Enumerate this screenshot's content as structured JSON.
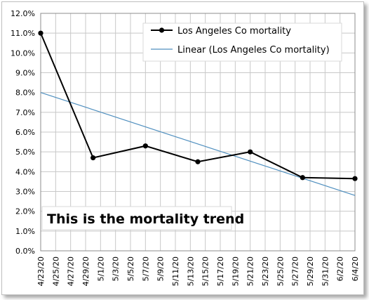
{
  "chart_data": {
    "type": "line",
    "x": [
      "4/23/20",
      "4/25/20",
      "4/27/20",
      "4/29/20",
      "5/1/20",
      "5/3/20",
      "5/5/20",
      "5/7/20",
      "5/9/20",
      "5/11/20",
      "5/13/20",
      "5/15/20",
      "5/17/20",
      "5/19/20",
      "5/21/20",
      "5/23/20",
      "5/25/20",
      "5/27/20",
      "5/29/20",
      "5/31/20",
      "6/2/20",
      "6/4/20"
    ],
    "ylim": [
      0,
      12
    ],
    "yticks": [
      "0.0%",
      "1.0%",
      "2.0%",
      "3.0%",
      "4.0%",
      "5.0%",
      "6.0%",
      "7.0%",
      "8.0%",
      "9.0%",
      "10.0%",
      "11.0%",
      "12.0%"
    ],
    "grid": true,
    "series": [
      {
        "name": "Los Angeles Co mortality",
        "color": "#000000",
        "points": [
          {
            "x": "4/23/20",
            "y": 11.0
          },
          {
            "x": "4/30/20",
            "y": 4.7
          },
          {
            "x": "5/7/20",
            "y": 5.3
          },
          {
            "x": "5/14/20",
            "y": 4.5
          },
          {
            "x": "5/21/20",
            "y": 5.0
          },
          {
            "x": "5/28/20",
            "y": 3.7
          },
          {
            "x": "6/4/20",
            "y": 3.65
          }
        ]
      },
      {
        "name": "Linear (Los Angeles Co mortality)",
        "color": "#4f8fbf",
        "points": [
          {
            "x": "4/23/20",
            "y": 8.0
          },
          {
            "x": "6/4/20",
            "y": 2.8
          }
        ]
      }
    ],
    "legend_position": "top-right",
    "annotation": "This is the mortality trend"
  }
}
